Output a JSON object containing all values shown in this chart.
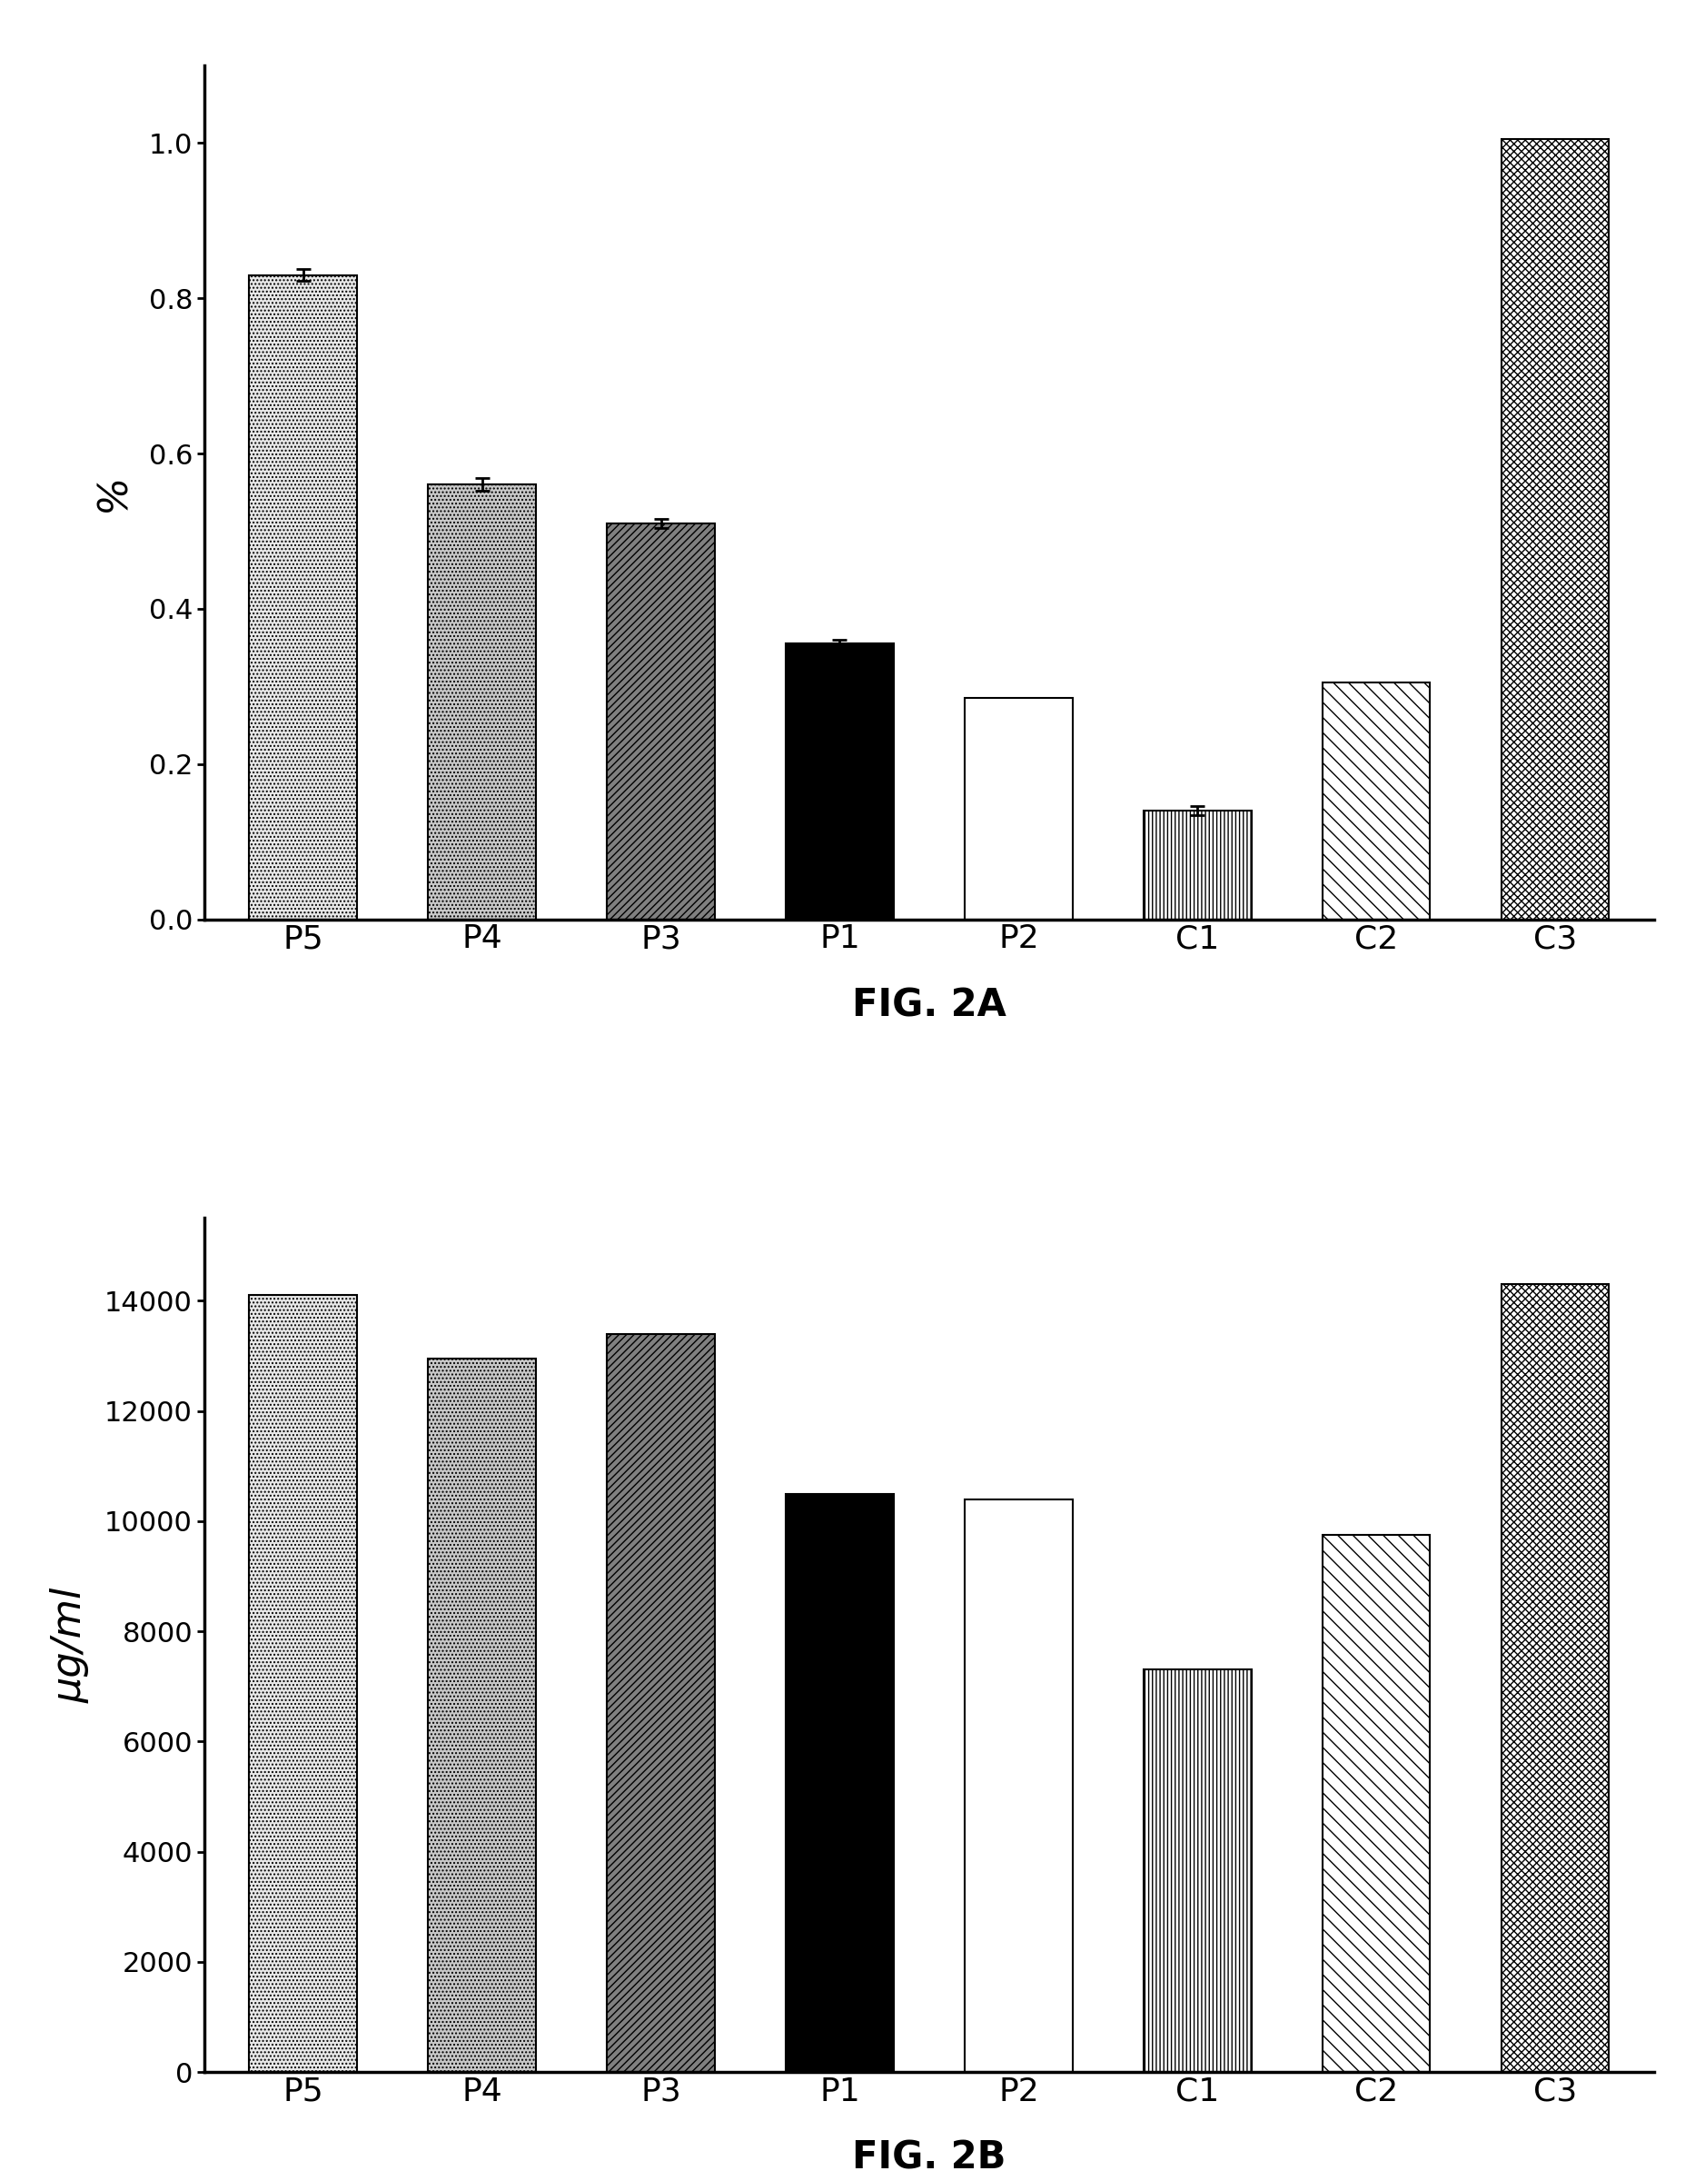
{
  "categories": [
    "P5",
    "P4",
    "P3",
    "P1",
    "P2",
    "C1",
    "C2",
    "C3"
  ],
  "fig2a": {
    "values": [
      0.83,
      0.56,
      0.51,
      0.355,
      0.285,
      0.14,
      0.305,
      1.005
    ],
    "errors": [
      0.008,
      0.008,
      0.006,
      0.005,
      0.0,
      0.006,
      0.0,
      0.0
    ],
    "ylabel": "%",
    "ylim": [
      0.0,
      1.1
    ],
    "yticks": [
      0.0,
      0.2,
      0.4,
      0.6,
      0.8,
      1.0
    ],
    "ytick_labels": [
      "0.0",
      "0.2",
      "0.4",
      "0.6",
      "0.8",
      "1.0"
    ],
    "title": "FIG. 2A"
  },
  "fig2b": {
    "values": [
      14100,
      12950,
      13400,
      10500,
      10400,
      7300,
      9750,
      14300
    ],
    "errors": [
      0,
      0,
      0,
      0,
      0,
      0,
      0,
      0
    ],
    "ylabel": "μg/ml",
    "ylim": [
      0,
      15500
    ],
    "yticks": [
      0,
      2000,
      4000,
      6000,
      8000,
      10000,
      12000,
      14000
    ],
    "ytick_labels": [
      "0",
      "2000",
      "4000",
      "6000",
      "8000",
      "10000",
      "12000",
      "14000"
    ],
    "title": "FIG. 2B"
  },
  "bars_config": [
    {
      "fc": "#e8e8e8",
      "hatch": "....",
      "ec": "#000000"
    },
    {
      "fc": "#c8c8c8",
      "hatch": "....",
      "ec": "#000000"
    },
    {
      "fc": "#808080",
      "hatch": "////",
      "ec": "#000000"
    },
    {
      "fc": "#000000",
      "hatch": "",
      "ec": "#000000"
    },
    {
      "fc": "#ffffff",
      "hatch": "====",
      "ec": "#000000"
    },
    {
      "fc": "#ffffff",
      "hatch": "||||",
      "ec": "#000000"
    },
    {
      "fc": "#ffffff",
      "hatch": "\\\\",
      "ec": "#000000"
    },
    {
      "fc": "#ffffff",
      "hatch": "xxxx",
      "ec": "#000000"
    }
  ],
  "background_color": "#ffffff",
  "bar_width": 0.6,
  "fontsize_labels": 26,
  "fontsize_ticks": 22,
  "fontsize_title": 30,
  "fontsize_ylabel": 32
}
